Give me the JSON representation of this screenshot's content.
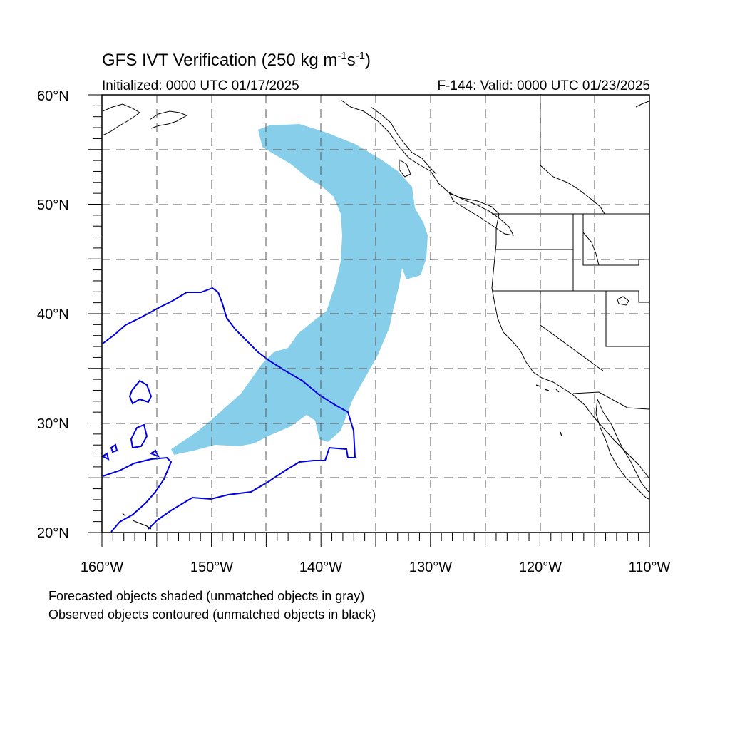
{
  "title": {
    "main": "GFS IVT Verification (250 kg m",
    "exp1": "-1",
    "mid": "s",
    "exp2": "-1",
    "end": ")"
  },
  "subtitle_left": "Initialized: 0000 UTC 01/17/2025",
  "subtitle_right": "F-144: Valid: 0000 UTC 01/23/2025",
  "lat_labels": [
    "60°N",
    "50°N",
    "40°N",
    "30°N",
    "20°N"
  ],
  "lon_labels": [
    "160°W",
    "150°W",
    "140°W",
    "130°W",
    "120°W",
    "110°W"
  ],
  "footnotes": [
    "Forecasted objects shaded (unmatched objects in gray)",
    "Observed objects contoured (unmatched objects in black)"
  ],
  "colors": {
    "forecast_fill": "#87ceeb",
    "observed_contour": "#0000e0",
    "coastline": "#000000",
    "grid": "#555555"
  },
  "map_extent": {
    "lon": [
      -160,
      -110
    ],
    "lat": [
      20,
      60
    ]
  }
}
